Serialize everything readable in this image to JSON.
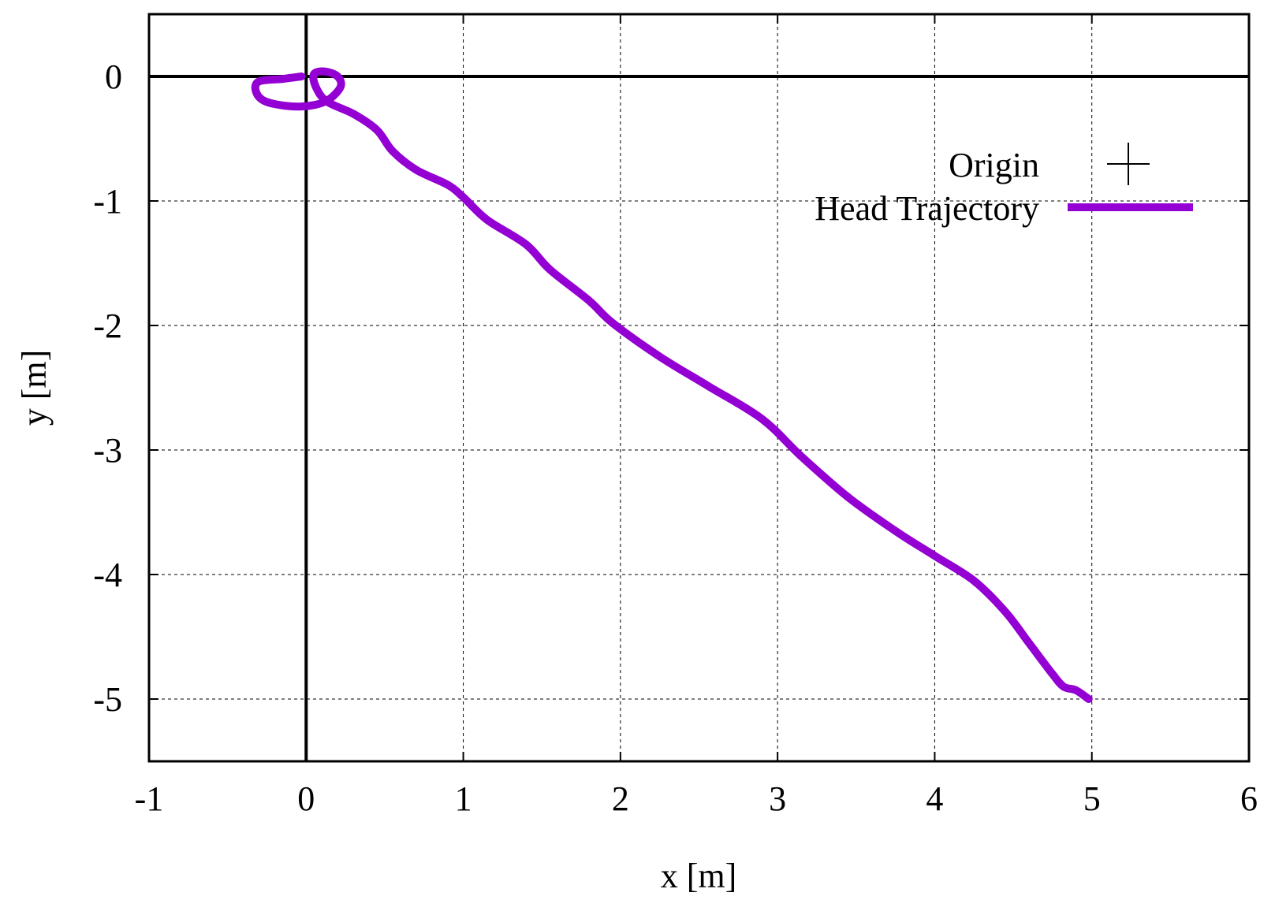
{
  "chart_data": {
    "type": "line",
    "xlabel": "x [m]",
    "ylabel": "y [m]",
    "xlim": [
      -1,
      6
    ],
    "ylim": [
      -5.5,
      0.5
    ],
    "xticks": [
      "-1",
      "0",
      "1",
      "2",
      "3",
      "4",
      "5",
      "6"
    ],
    "yticks": [
      "0",
      "-1",
      "-2",
      "-3",
      "-4",
      "-5"
    ],
    "grid": true,
    "zero_axes": true,
    "legend_position": "top-right",
    "series": [
      {
        "name": "Origin",
        "style": "point",
        "marker": "plus",
        "color": "#000000",
        "points": [
          [
            0,
            0
          ]
        ]
      },
      {
        "name": "Head Trajectory",
        "style": "line",
        "color": "#9400D3",
        "points": [
          [
            -0.03,
            0.0
          ],
          [
            -0.15,
            -0.02
          ],
          [
            -0.3,
            -0.04
          ],
          [
            -0.32,
            -0.12
          ],
          [
            -0.26,
            -0.2
          ],
          [
            -0.1,
            -0.24
          ],
          [
            0.05,
            -0.23
          ],
          [
            0.15,
            -0.18
          ],
          [
            0.22,
            -0.08
          ],
          [
            0.2,
            0.0
          ],
          [
            0.12,
            0.04
          ],
          [
            0.05,
            0.02
          ],
          [
            0.06,
            -0.08
          ],
          [
            0.13,
            -0.2
          ],
          [
            0.3,
            -0.3
          ],
          [
            0.45,
            -0.43
          ],
          [
            0.55,
            -0.6
          ],
          [
            0.7,
            -0.75
          ],
          [
            0.9,
            -0.87
          ],
          [
            1.0,
            -0.97
          ],
          [
            1.15,
            -1.15
          ],
          [
            1.4,
            -1.35
          ],
          [
            1.55,
            -1.55
          ],
          [
            1.8,
            -1.8
          ],
          [
            1.95,
            -1.98
          ],
          [
            2.25,
            -2.25
          ],
          [
            2.55,
            -2.48
          ],
          [
            2.9,
            -2.75
          ],
          [
            3.15,
            -3.05
          ],
          [
            3.45,
            -3.38
          ],
          [
            3.75,
            -3.65
          ],
          [
            4.0,
            -3.85
          ],
          [
            4.25,
            -4.05
          ],
          [
            4.45,
            -4.3
          ],
          [
            4.6,
            -4.55
          ],
          [
            4.75,
            -4.8
          ],
          [
            4.82,
            -4.9
          ],
          [
            4.9,
            -4.93
          ],
          [
            4.98,
            -5.0
          ]
        ]
      }
    ]
  }
}
